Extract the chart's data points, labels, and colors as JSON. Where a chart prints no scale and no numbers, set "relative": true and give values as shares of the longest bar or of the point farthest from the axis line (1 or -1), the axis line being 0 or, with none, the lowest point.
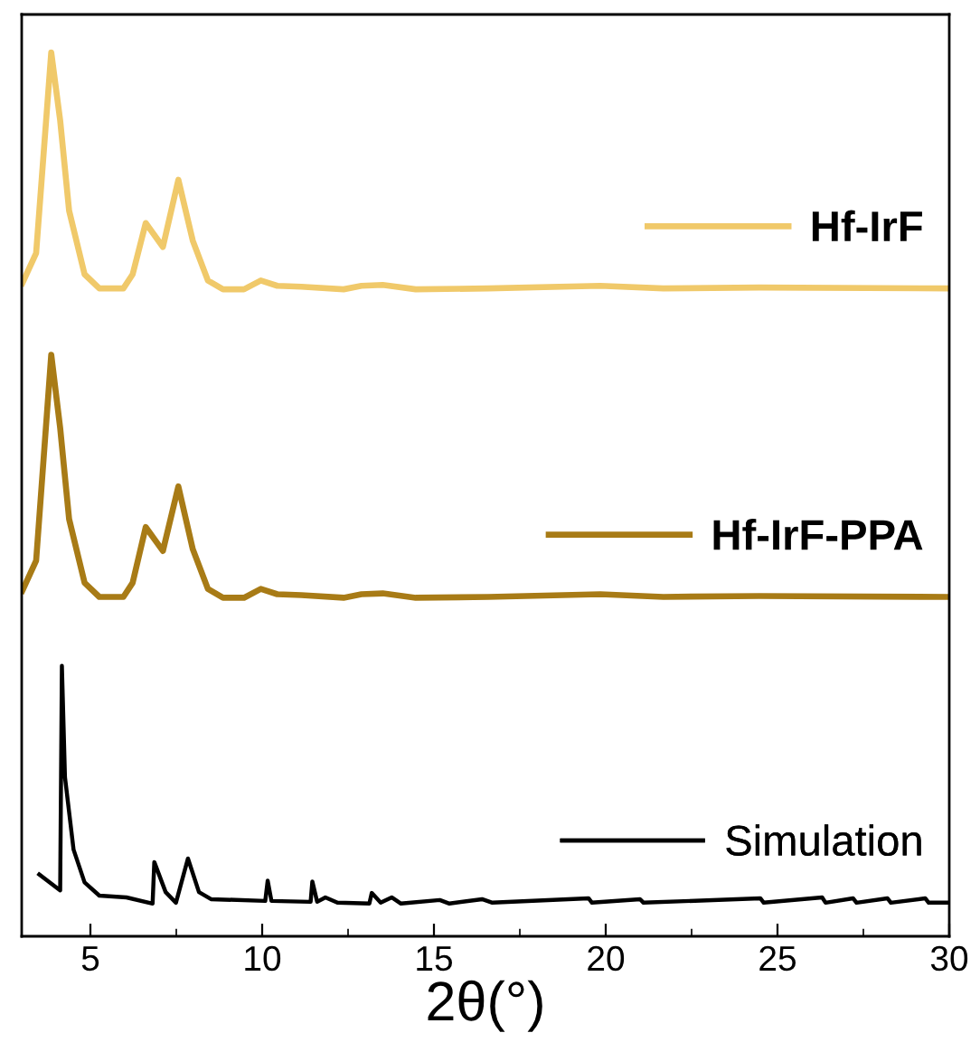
{
  "chart_data": {
    "type": "line",
    "xlabel": "2θ(°)",
    "relative": true,
    "xlim": [
      3,
      30
    ],
    "xticks": [
      5,
      10,
      15,
      20,
      25,
      30
    ],
    "legend": "right",
    "grid": false,
    "series": [
      {
        "name": "Hf-IrF",
        "color": "#f0c96a",
        "x": [
          3.02,
          3.42,
          3.86,
          4.12,
          4.38,
          4.83,
          5.26,
          5.96,
          6.23,
          6.61,
          7.11,
          7.56,
          7.98,
          8.42,
          8.86,
          9.47,
          9.96,
          10.44,
          11.14,
          12.37,
          12.89,
          13.51,
          14.47,
          16.58,
          19.84,
          21.68,
          24.47,
          30
        ],
        "values": [
          0.739,
          0.773,
          1.0,
          0.923,
          0.821,
          0.749,
          0.733,
          0.733,
          0.749,
          0.807,
          0.78,
          0.856,
          0.787,
          0.742,
          0.732,
          0.732,
          0.742,
          0.736,
          0.735,
          0.732,
          0.736,
          0.737,
          0.732,
          0.733,
          0.736,
          0.733,
          0.734,
          0.733
        ]
      },
      {
        "name": "Hf-IrF-PPA",
        "color": "#a87b16",
        "x": [
          3.02,
          3.42,
          3.86,
          4.12,
          4.38,
          4.83,
          5.26,
          5.96,
          6.23,
          6.61,
          7.11,
          7.56,
          7.98,
          8.42,
          8.86,
          9.47,
          9.96,
          10.44,
          11.14,
          12.37,
          12.89,
          13.51,
          14.47,
          16.58,
          19.84,
          21.68,
          24.47,
          30
        ],
        "values": [
          0.391,
          0.425,
          0.658,
          0.575,
          0.472,
          0.4,
          0.384,
          0.384,
          0.4,
          0.463,
          0.436,
          0.509,
          0.438,
          0.393,
          0.383,
          0.383,
          0.393,
          0.387,
          0.386,
          0.383,
          0.387,
          0.388,
          0.383,
          0.384,
          0.387,
          0.384,
          0.385,
          0.384
        ]
      },
      {
        "name": "Simulation",
        "color": "#000000",
        "x": [
          3.51,
          4.12,
          4.17,
          4.26,
          4.51,
          4.83,
          5.26,
          6.05,
          6.81,
          6.86,
          7.19,
          7.49,
          7.84,
          8.16,
          8.51,
          10.09,
          10.16,
          10.27,
          11.41,
          11.46,
          11.6,
          11.84,
          12.19,
          13.12,
          13.19,
          13.45,
          13.77,
          14.04,
          15.17,
          15.45,
          16.4,
          16.7,
          19.5,
          19.6,
          21.0,
          21.1,
          24.5,
          24.6,
          26.3,
          26.4,
          27.2,
          27.3,
          28.2,
          28.3,
          29.3,
          29.4,
          30
        ],
        "values": [
          0.07,
          0.052,
          0.306,
          0.18,
          0.098,
          0.061,
          0.046,
          0.044,
          0.037,
          0.084,
          0.05,
          0.038,
          0.088,
          0.05,
          0.042,
          0.04,
          0.063,
          0.04,
          0.039,
          0.062,
          0.039,
          0.044,
          0.038,
          0.037,
          0.049,
          0.038,
          0.044,
          0.037,
          0.041,
          0.037,
          0.042,
          0.038,
          0.043,
          0.038,
          0.042,
          0.038,
          0.043,
          0.038,
          0.044,
          0.038,
          0.043,
          0.038,
          0.043,
          0.038,
          0.043,
          0.038,
          0.038
        ]
      }
    ]
  }
}
